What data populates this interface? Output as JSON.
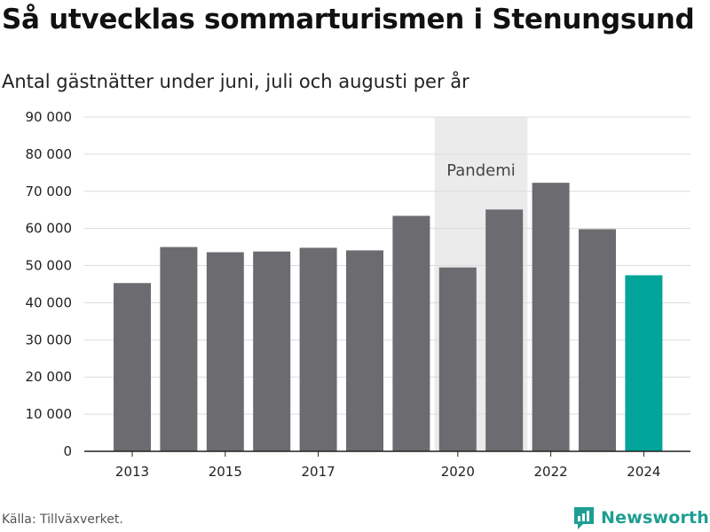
{
  "title": "Så utvecklas sommarturismen i Stenungsund",
  "subtitle": "Antal gästnätter under juni, juli och augusti per år",
  "source": "Källa: Tillväxverket.",
  "brand": {
    "name": "Newsworthy",
    "icon": "newsworthy-logo-icon",
    "color": "#1e9e92"
  },
  "chart_data": {
    "type": "bar",
    "categories": [
      "2013",
      "2014",
      "2015",
      "2016",
      "2017",
      "2018",
      "2019",
      "2020",
      "2021",
      "2022",
      "2023",
      "2024"
    ],
    "values": [
      45300,
      55000,
      53600,
      53800,
      54800,
      54100,
      63400,
      49500,
      65100,
      72300,
      59800,
      47400
    ],
    "colors": {
      "default": "#6c6b70",
      "highlight": "#00a499",
      "band": "#ebebeb"
    },
    "highlight_category": "2024",
    "x_tick_labels": [
      "2013",
      "2015",
      "2017",
      "2020",
      "2022",
      "2024"
    ],
    "y_ticks": [
      0,
      10000,
      20000,
      30000,
      40000,
      50000,
      60000,
      70000,
      80000,
      90000
    ],
    "y_tick_labels": [
      "0",
      "10 000",
      "20 000",
      "30 000",
      "40 000",
      "50 000",
      "60 000",
      "70 000",
      "80 000",
      "90 000"
    ],
    "ylim": [
      0,
      90000
    ],
    "grid": true,
    "annotation": {
      "label": "Pandemi",
      "from": "2020",
      "to": "2021"
    },
    "xlabel": "",
    "ylabel": ""
  }
}
